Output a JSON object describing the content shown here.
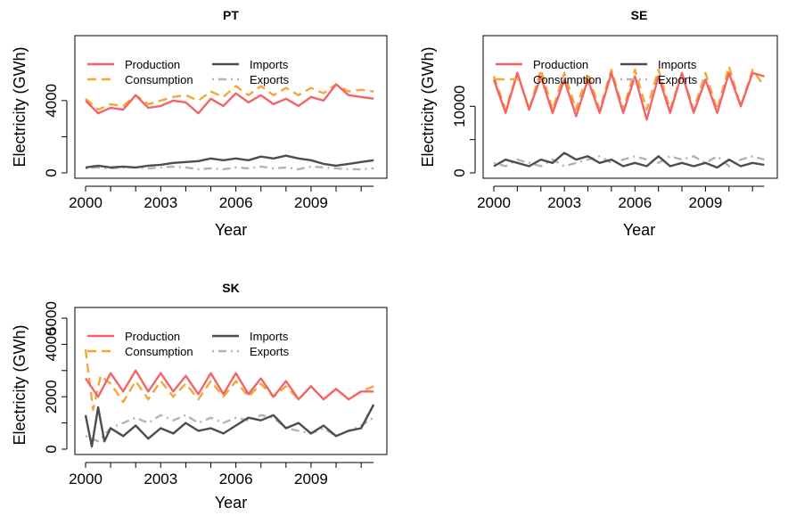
{
  "colors": {
    "production": "#f46467",
    "consumption": "#f7a537",
    "imports": "#4d4d4d",
    "exports": "#b3b3b3",
    "axis": "#000000"
  },
  "chart_data": [
    {
      "type": "line",
      "title": "PT",
      "xlabel": "Year",
      "ylabel": "Electricity (GWh)",
      "xlim": [
        2000,
        2011.6
      ],
      "ylim": [
        0,
        7000
      ],
      "xticks": [
        2000,
        2003,
        2006,
        2009
      ],
      "yticks": [
        0,
        4000
      ],
      "legend": {
        "placement": "top-left",
        "columns": 2
      },
      "series": [
        {
          "name": "Production",
          "style": "solid",
          "color_key": "production",
          "x": [
            2000,
            2000.5,
            2001,
            2001.5,
            2002,
            2002.5,
            2003,
            2003.5,
            2004,
            2004.5,
            2005,
            2005.5,
            2006,
            2006.5,
            2007,
            2007.5,
            2008,
            2008.5,
            2009,
            2009.5,
            2010,
            2010.5,
            2011,
            2011.5
          ],
          "y": [
            4000,
            3300,
            3600,
            3500,
            4300,
            3600,
            3700,
            4000,
            3900,
            3300,
            4100,
            3700,
            4400,
            3900,
            4300,
            3800,
            4100,
            3700,
            4200,
            4000,
            4900,
            4300,
            4200,
            4100
          ]
        },
        {
          "name": "Consumption",
          "style": "dashed",
          "color_key": "consumption",
          "x": [
            2000,
            2000.5,
            2001,
            2001.5,
            2002,
            2002.5,
            2003,
            2003.5,
            2004,
            2004.5,
            2005,
            2005.5,
            2006,
            2006.5,
            2007,
            2007.5,
            2008,
            2008.5,
            2009,
            2009.5,
            2010,
            2010.5,
            2011,
            2011.5
          ],
          "y": [
            4100,
            3500,
            3800,
            3700,
            4300,
            3800,
            4000,
            4200,
            4300,
            4000,
            4500,
            4200,
            4800,
            4300,
            4800,
            4300,
            4700,
            4300,
            4700,
            4400,
            4900,
            4500,
            4600,
            4500
          ]
        },
        {
          "name": "Imports",
          "style": "solid",
          "color_key": "imports",
          "x": [
            2000,
            2000.5,
            2001,
            2001.5,
            2002,
            2002.5,
            2003,
            2003.5,
            2004,
            2004.5,
            2005,
            2005.5,
            2006,
            2006.5,
            2007,
            2007.5,
            2008,
            2008.5,
            2009,
            2009.5,
            2010,
            2010.5,
            2011,
            2011.5
          ],
          "y": [
            300,
            400,
            300,
            350,
            300,
            400,
            450,
            550,
            600,
            650,
            800,
            700,
            800,
            700,
            900,
            800,
            950,
            800,
            700,
            500,
            400,
            500,
            600,
            700
          ]
        },
        {
          "name": "Exports",
          "style": "dotdash",
          "color_key": "exports",
          "x": [
            2000,
            2000.5,
            2001,
            2001.5,
            2002,
            2002.5,
            2003,
            2003.5,
            2004,
            2004.5,
            2005,
            2005.5,
            2006,
            2006.5,
            2007,
            2007.5,
            2008,
            2008.5,
            2009,
            2009.5,
            2010,
            2010.5,
            2011,
            2011.5
          ],
          "y": [
            250,
            300,
            250,
            300,
            300,
            250,
            300,
            350,
            300,
            200,
            250,
            200,
            300,
            250,
            350,
            250,
            300,
            200,
            350,
            300,
            250,
            200,
            200,
            250
          ]
        }
      ]
    },
    {
      "type": "line",
      "title": "SE",
      "xlabel": "Year",
      "ylabel": "Electricity (GWh)",
      "xlim": [
        2000,
        2011.6
      ],
      "ylim": [
        0,
        19000
      ],
      "xticks": [
        2000,
        2003,
        2006,
        2009
      ],
      "yticks": [
        0,
        10000
      ],
      "legend": {
        "placement": "top-left",
        "columns": 2
      },
      "series": [
        {
          "name": "Production",
          "style": "solid",
          "color_key": "production",
          "x": [
            2000,
            2000.5,
            2001,
            2001.5,
            2002,
            2002.5,
            2003,
            2003.5,
            2004,
            2004.5,
            2005,
            2005.5,
            2006,
            2006.5,
            2007,
            2007.5,
            2008,
            2008.5,
            2009,
            2009.5,
            2010,
            2010.5,
            2011,
            2011.5
          ],
          "y": [
            14000,
            9000,
            15000,
            9500,
            14500,
            9000,
            14000,
            8500,
            14000,
            9000,
            15000,
            9000,
            14500,
            8000,
            14500,
            9000,
            15000,
            9000,
            14000,
            9000,
            15000,
            10000,
            15000,
            14500
          ]
        },
        {
          "name": "Consumption",
          "style": "dashed",
          "color_key": "consumption",
          "x": [
            2000,
            2000.5,
            2001,
            2001.5,
            2002,
            2002.5,
            2003,
            2003.5,
            2004,
            2004.5,
            2005,
            2005.5,
            2006,
            2006.5,
            2007,
            2007.5,
            2008,
            2008.5,
            2009,
            2009.5,
            2010,
            2010.5,
            2011,
            2011.5
          ],
          "y": [
            14500,
            9500,
            15000,
            9500,
            15500,
            9500,
            15000,
            9500,
            15000,
            9500,
            15500,
            9500,
            15500,
            9500,
            15500,
            9500,
            15000,
            9500,
            15000,
            9500,
            16000,
            10000,
            15500,
            13000
          ]
        },
        {
          "name": "Imports",
          "style": "solid",
          "color_key": "imports",
          "x": [
            2000,
            2000.5,
            2001,
            2001.5,
            2002,
            2002.5,
            2003,
            2003.5,
            2004,
            2004.5,
            2005,
            2005.5,
            2006,
            2006.5,
            2007,
            2007.5,
            2008,
            2008.5,
            2009,
            2009.5,
            2010,
            2010.5,
            2011,
            2011.5
          ],
          "y": [
            1000,
            2000,
            1500,
            1000,
            2000,
            1500,
            3000,
            2000,
            2500,
            1500,
            2000,
            1000,
            1500,
            1000,
            2500,
            1000,
            1500,
            1000,
            1500,
            800,
            2000,
            1000,
            1500,
            1200
          ]
        },
        {
          "name": "Exports",
          "style": "dotdash",
          "color_key": "exports",
          "x": [
            2000,
            2000.5,
            2001,
            2001.5,
            2002,
            2002.5,
            2003,
            2003.5,
            2004,
            2004.5,
            2005,
            2005.5,
            2006,
            2006.5,
            2007,
            2007.5,
            2008,
            2008.5,
            2009,
            2009.5,
            2010,
            2010.5,
            2011,
            2011.5
          ],
          "y": [
            1500,
            1000,
            2000,
            1500,
            1000,
            2000,
            1000,
            1500,
            2000,
            2500,
            1500,
            2000,
            2500,
            2000,
            1500,
            2500,
            2000,
            2500,
            1500,
            2500,
            1000,
            2000,
            2500,
            2000
          ]
        }
      ]
    },
    {
      "type": "line",
      "title": "SK",
      "xlabel": "Year",
      "ylabel": "Electricity (GWh)",
      "xlim": [
        2000,
        2011.6
      ],
      "ylim": [
        0,
        5000
      ],
      "xticks": [
        2000,
        2003,
        2006,
        2009
      ],
      "yticks": [
        0,
        2000,
        4000,
        5000
      ],
      "legend": {
        "placement": "top-left",
        "columns": 2
      },
      "series": [
        {
          "name": "Production",
          "style": "solid",
          "color_key": "production",
          "x": [
            2000,
            2000.5,
            2001,
            2001.5,
            2002,
            2002.5,
            2003,
            2003.5,
            2004,
            2004.5,
            2005,
            2005.5,
            2006,
            2006.5,
            2007,
            2007.5,
            2008,
            2008.5,
            2009,
            2009.5,
            2010,
            2010.5,
            2011,
            2011.5
          ],
          "y": [
            2700,
            2000,
            2900,
            2200,
            3000,
            2200,
            2900,
            2200,
            2800,
            2100,
            2900,
            2100,
            2900,
            2100,
            2700,
            2000,
            2600,
            1900,
            2400,
            1900,
            2300,
            1900,
            2200,
            2200
          ]
        },
        {
          "name": "Consumption",
          "style": "dashed",
          "color_key": "consumption",
          "x": [
            2000,
            2000.3,
            2000.6,
            2001,
            2001.5,
            2002,
            2002.5,
            2003,
            2003.5,
            2004,
            2004.5,
            2005,
            2005.5,
            2006,
            2006.5,
            2007,
            2007.5,
            2008,
            2008.5,
            2009,
            2009.5,
            2010,
            2010.5,
            2011,
            2011.5
          ],
          "y": [
            3800,
            1500,
            2800,
            2500,
            1800,
            2600,
            1900,
            2600,
            2000,
            2500,
            1900,
            2600,
            2000,
            2600,
            2000,
            2500,
            2000,
            2400,
            1900,
            2400,
            1900,
            2300,
            1900,
            2200,
            2400
          ]
        },
        {
          "name": "Imports",
          "style": "solid",
          "color_key": "imports",
          "x": [
            2000,
            2000.25,
            2000.5,
            2000.75,
            2001,
            2001.5,
            2002,
            2002.5,
            2003,
            2003.5,
            2004,
            2004.5,
            2005,
            2005.5,
            2006,
            2006.5,
            2007,
            2007.5,
            2008,
            2008.5,
            2009,
            2009.5,
            2010,
            2010.5,
            2011,
            2011.5
          ],
          "y": [
            1300,
            100,
            1600,
            300,
            800,
            500,
            900,
            400,
            800,
            600,
            1000,
            700,
            800,
            600,
            900,
            1200,
            1100,
            1300,
            800,
            1000,
            600,
            900,
            500,
            700,
            800,
            1700
          ]
        },
        {
          "name": "Exports",
          "style": "dotdash",
          "color_key": "exports",
          "x": [
            2000,
            2000.5,
            2001,
            2001.5,
            2002,
            2002.5,
            2003,
            2003.5,
            2004,
            2004.5,
            2005,
            2005.5,
            2006,
            2006.5,
            2007,
            2007.5,
            2008,
            2008.5,
            2009,
            2009.5,
            2010,
            2010.5,
            2011,
            2011.5
          ],
          "y": [
            500,
            300,
            800,
            1000,
            1200,
            1000,
            1300,
            1100,
            1300,
            1000,
            1200,
            1000,
            1200,
            1100,
            1300,
            1200,
            800,
            700,
            600,
            800,
            500,
            700,
            900,
            1200
          ]
        }
      ]
    }
  ]
}
